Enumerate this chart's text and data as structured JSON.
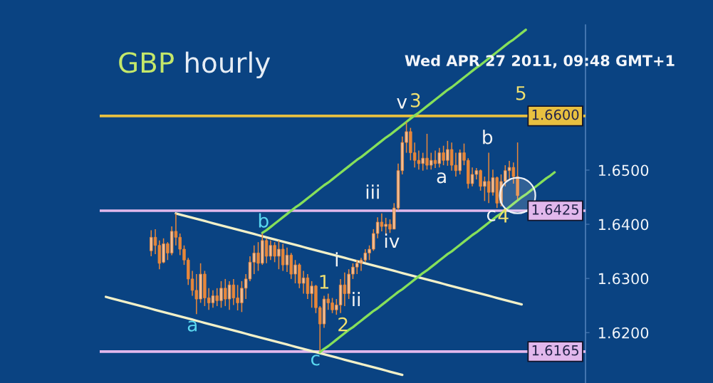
{
  "chart_data": {
    "type": "candlestick",
    "title": "GBP hourly",
    "subtitle": "Wed APR 27 2011, 09:48 GMT+1",
    "color": "#e8873a",
    "categories": [
      null,
      null,
      null,
      null,
      null,
      null,
      null,
      null,
      null,
      null,
      null,
      null,
      null,
      null,
      null,
      null,
      null,
      null,
      null,
      null,
      null,
      null,
      null,
      null,
      null,
      null,
      null,
      null,
      null,
      null,
      null,
      null,
      null,
      null,
      null,
      null,
      null,
      null,
      null,
      null,
      null,
      null,
      null,
      null,
      null,
      null,
      null,
      null,
      null,
      null,
      null,
      null,
      null,
      null,
      null,
      null,
      null,
      null,
      null,
      null,
      null,
      null,
      null,
      null,
      null,
      null,
      null,
      null,
      null,
      null,
      null,
      null,
      null,
      null,
      null,
      null,
      null,
      null,
      null,
      null,
      null,
      null,
      null,
      null,
      null,
      null,
      null,
      null,
      null,
      null,
      null,
      null,
      null,
      null,
      null,
      null,
      null,
      null,
      null,
      null,
      null,
      null,
      null,
      null,
      null,
      null,
      null,
      null,
      null,
      null,
      null,
      null,
      null,
      null,
      null,
      null,
      null,
      null
    ],
    "ohlc": [
      null,
      null,
      null,
      null,
      null,
      null,
      null,
      null,
      null,
      null,
      null,
      null,
      [
        1.6351,
        1.6389,
        1.6341,
        1.6376
      ],
      [
        1.6376,
        1.6391,
        1.6345,
        1.6361
      ],
      [
        1.6361,
        1.637,
        1.6317,
        1.6328
      ],
      [
        1.633,
        1.6374,
        1.6328,
        1.6364
      ],
      [
        1.6364,
        1.6367,
        1.6334,
        1.6347
      ],
      [
        1.6347,
        1.6396,
        1.6343,
        1.6387
      ],
      [
        1.6387,
        1.642,
        1.6361,
        1.6376
      ],
      [
        1.6376,
        1.6383,
        1.6343,
        1.6354
      ],
      [
        1.6354,
        1.6361,
        1.6325,
        1.6334
      ],
      [
        1.6334,
        1.6338,
        1.6288,
        1.6299
      ],
      [
        1.6299,
        1.6314,
        1.6268,
        1.6278
      ],
      [
        1.6278,
        1.6308,
        1.6234,
        1.6262
      ],
      [
        1.6262,
        1.6328,
        1.6255,
        1.6308
      ],
      [
        1.6308,
        1.6314,
        1.6249,
        1.6264
      ],
      [
        1.6264,
        1.6282,
        1.6242,
        1.6255
      ],
      [
        1.6255,
        1.6278,
        1.6246,
        1.6268
      ],
      [
        1.6268,
        1.6282,
        1.6249,
        1.6259
      ],
      [
        1.6259,
        1.6295,
        1.6246,
        1.6282
      ],
      [
        1.6282,
        1.6299,
        1.6249,
        1.6262
      ],
      [
        1.6262,
        1.6295,
        1.6242,
        1.6288
      ],
      [
        1.6288,
        1.6299,
        1.6251,
        1.6264
      ],
      [
        1.6264,
        1.6288,
        1.6241,
        1.6255
      ],
      [
        1.6255,
        1.6295,
        1.6238,
        1.6282
      ],
      [
        1.6282,
        1.6308,
        1.6262,
        1.6299
      ],
      [
        1.6299,
        1.6341,
        1.6295,
        1.633
      ],
      [
        1.633,
        1.6361,
        1.6308,
        1.6347
      ],
      [
        1.6347,
        1.6367,
        1.6314,
        1.6328
      ],
      [
        1.6328,
        1.6383,
        1.6325,
        1.637
      ],
      [
        1.637,
        1.6374,
        1.6328,
        1.6341
      ],
      [
        1.6341,
        1.637,
        1.6334,
        1.6361
      ],
      [
        1.6361,
        1.6367,
        1.633,
        1.6341
      ],
      [
        1.6341,
        1.637,
        1.6317,
        1.6354
      ],
      [
        1.6354,
        1.6364,
        1.6314,
        1.6325
      ],
      [
        1.6325,
        1.6357,
        1.6312,
        1.6343
      ],
      [
        1.6343,
        1.6347,
        1.6299,
        1.6308
      ],
      [
        1.6308,
        1.6334,
        1.6291,
        1.6325
      ],
      [
        1.6325,
        1.6328,
        1.6282,
        1.6291
      ],
      [
        1.6291,
        1.6314,
        1.6272,
        1.6301
      ],
      [
        1.6301,
        1.6308,
        1.6262,
        1.6272
      ],
      [
        1.6272,
        1.6295,
        1.6246,
        1.6286
      ],
      [
        1.6286,
        1.6288,
        1.6236,
        1.6246
      ],
      [
        1.6246,
        1.6249,
        1.6166,
        1.6216
      ],
      [
        1.6216,
        1.6268,
        1.6209,
        1.6262
      ],
      [
        1.6262,
        1.6272,
        1.6242,
        1.6255
      ],
      [
        1.6255,
        1.6264,
        1.6236,
        1.6242
      ],
      [
        1.6242,
        1.6262,
        1.6233,
        1.6251
      ],
      [
        1.6251,
        1.6299,
        1.6236,
        1.6288
      ],
      [
        1.6288,
        1.6311,
        1.6249,
        1.6272
      ],
      [
        1.6272,
        1.6317,
        1.6262,
        1.6308
      ],
      [
        1.6308,
        1.6328,
        1.6299,
        1.6321
      ],
      [
        1.6321,
        1.6334,
        1.6308,
        1.6328
      ],
      [
        1.6328,
        1.6338,
        1.6314,
        1.6334
      ],
      [
        1.6334,
        1.6354,
        1.633,
        1.6347
      ],
      [
        1.6347,
        1.6361,
        1.6334,
        1.6354
      ],
      [
        1.6354,
        1.6391,
        1.6351,
        1.6383
      ],
      [
        1.6383,
        1.6413,
        1.6374,
        1.6404
      ],
      [
        1.6404,
        1.642,
        1.6387,
        1.6396
      ],
      [
        1.6396,
        1.6412,
        1.6383,
        1.64
      ],
      [
        1.64,
        1.6409,
        1.6384,
        1.6391
      ],
      [
        1.6391,
        1.6439,
        1.6391,
        1.643
      ],
      [
        1.643,
        1.6512,
        1.6426,
        1.6499
      ],
      [
        1.6499,
        1.6562,
        1.6492,
        1.6551
      ],
      [
        1.6551,
        1.6589,
        1.6532,
        1.6571
      ],
      [
        1.6571,
        1.6578,
        1.6518,
        1.6532
      ],
      [
        1.6532,
        1.6551,
        1.6505,
        1.6518
      ],
      [
        1.6518,
        1.6536,
        1.6501,
        1.6512
      ],
      [
        1.6512,
        1.6532,
        1.6499,
        1.6522
      ],
      [
        1.6522,
        1.6567,
        1.6501,
        1.6509
      ],
      [
        1.6509,
        1.6532,
        1.6501,
        1.6518
      ],
      [
        1.6518,
        1.6536,
        1.6504,
        1.6512
      ],
      [
        1.6512,
        1.6541,
        1.6505,
        1.6532
      ],
      [
        1.6532,
        1.6545,
        1.6509,
        1.6518
      ],
      [
        1.6518,
        1.6554,
        1.6508,
        1.6538
      ],
      [
        1.6538,
        1.6551,
        1.6499,
        1.6509
      ],
      [
        1.6509,
        1.6532,
        1.6488,
        1.6499
      ],
      [
        1.6499,
        1.6538,
        1.6492,
        1.6532
      ],
      [
        1.6532,
        1.6549,
        1.6509,
        1.6518
      ],
      [
        1.6518,
        1.6522,
        1.6466,
        1.6475
      ],
      [
        1.6475,
        1.6505,
        1.647,
        1.6492
      ],
      [
        1.6492,
        1.6504,
        1.6483,
        1.6499
      ],
      [
        1.6499,
        1.6501,
        1.6462,
        1.647
      ],
      [
        1.647,
        1.6488,
        1.6443,
        1.6479
      ],
      [
        1.6479,
        1.6532,
        1.6439,
        1.6459
      ],
      [
        1.6459,
        1.6501,
        1.6453,
        1.6486
      ],
      [
        1.6486,
        1.6488,
        1.643,
        1.6439
      ],
      [
        1.6439,
        1.6492,
        1.6433,
        1.6479
      ],
      [
        1.6479,
        1.6509,
        1.647,
        1.6499
      ],
      [
        1.6499,
        1.6517,
        1.6483,
        1.6505
      ],
      [
        1.6505,
        1.6514,
        1.6475,
        1.6488
      ],
      [
        1.6488,
        1.6551,
        1.6446,
        1.6453
      ],
      null,
      null,
      null,
      null,
      null,
      null,
      null,
      null,
      null,
      null,
      null,
      null,
      null,
      null,
      null,
      null
    ],
    "series": [
      {
        "type": "line",
        "color": "#f2f0c8",
        "values": [
          null,
          1.6266,
          1.6264,
          1.6262,
          1.626,
          1.6258,
          1.6256,
          1.6254,
          1.6252,
          1.625,
          1.6248,
          1.6246,
          1.6244,
          1.6242,
          1.624,
          1.6238,
          1.6236,
          1.6234,
          1.6232,
          1.623,
          1.6228,
          1.6226,
          1.6224,
          1.6222,
          1.622,
          1.6218,
          1.6216,
          1.6214,
          1.6212,
          1.621,
          1.6208,
          1.6206,
          1.6204,
          1.6202,
          1.62,
          1.6198,
          1.6196,
          1.6194,
          1.6192,
          1.619,
          1.6188,
          1.6186,
          1.6184,
          1.6182,
          1.618,
          1.6178,
          1.6176,
          1.6174,
          1.6172,
          1.617,
          1.6168,
          1.6166,
          1.6164,
          1.6162,
          1.616,
          1.6158,
          1.6156,
          1.6154,
          1.6152,
          1.615,
          1.6148,
          1.6146,
          1.6144,
          1.6142,
          1.614,
          1.6138,
          1.6136,
          1.6134,
          1.6132,
          1.613,
          1.6128,
          1.6126,
          1.6124,
          1.6122,
          null,
          null,
          null,
          null,
          null,
          null,
          null,
          null,
          null,
          null,
          null,
          null,
          null,
          null,
          null,
          null,
          null,
          null,
          null,
          null,
          null,
          null,
          null,
          null,
          null,
          null,
          null,
          null,
          null,
          null,
          null,
          null,
          null,
          null,
          null,
          null,
          null,
          null,
          null,
          null,
          null,
          null,
          null,
          null
        ]
      },
      {
        "type": "line",
        "color": "#f2f0c8",
        "values": [
          null,
          null,
          null,
          null,
          null,
          null,
          null,
          null,
          null,
          null,
          null,
          null,
          null,
          null,
          null,
          null,
          null,
          null,
          1.642,
          1.6418,
          1.6416,
          1.6414,
          1.6412,
          1.641,
          1.6408,
          1.6406,
          1.6404,
          1.6402,
          1.64,
          1.6398,
          1.6396,
          1.6394,
          1.6392,
          1.639,
          1.6388,
          1.6386,
          1.6384,
          1.6382,
          1.638,
          1.6378,
          1.6376,
          1.6374,
          1.6372,
          1.637,
          1.6368,
          1.6366,
          1.6364,
          1.6362,
          1.636,
          1.6358,
          1.6356,
          1.6354,
          1.6352,
          1.635,
          1.6348,
          1.6346,
          1.6344,
          1.6342,
          1.634,
          1.6338,
          1.6336,
          1.6334,
          1.6332,
          1.633,
          1.6328,
          1.6326,
          1.6324,
          1.6322,
          1.632,
          1.6318,
          1.6316,
          1.6314,
          1.6312,
          1.631,
          1.6308,
          1.6306,
          1.6304,
          1.6302,
          1.63,
          1.6298,
          1.6296,
          1.6294,
          1.6292,
          1.629,
          1.6288,
          1.6286,
          1.6284,
          1.6282,
          1.628,
          1.6278,
          1.6276,
          1.6274,
          1.6272,
          1.627,
          1.6268,
          1.6266,
          1.6264,
          1.6262,
          1.626,
          1.6258,
          1.6256,
          1.6254,
          1.6252,
          null,
          null,
          null,
          null,
          null,
          null,
          null,
          null,
          null,
          null,
          null,
          null,
          null,
          null,
          null
        ]
      },
      {
        "type": "line",
        "color": "#86e05a",
        "values": [
          null,
          null,
          null,
          null,
          null,
          null,
          null,
          null,
          null,
          null,
          null,
          null,
          null,
          null,
          null,
          null,
          null,
          null,
          null,
          null,
          null,
          null,
          null,
          null,
          null,
          null,
          null,
          null,
          null,
          null,
          null,
          null,
          null,
          null,
          null,
          null,
          null,
          null,
          null,
          1.6384,
          1.6389,
          1.6395,
          1.6401,
          1.6407,
          1.6413,
          1.6419,
          1.6425,
          1.6431,
          1.6436,
          1.6442,
          1.6448,
          1.6454,
          1.646,
          1.6466,
          1.6472,
          1.6477,
          1.6483,
          1.6489,
          1.6495,
          1.6501,
          1.6507,
          1.6513,
          1.6519,
          1.6524,
          1.653,
          1.6536,
          1.6542,
          1.6548,
          1.6554,
          1.656,
          1.6565,
          1.6571,
          1.6577,
          1.6583,
          1.6589,
          1.6595,
          1.6601,
          1.6606,
          1.6612,
          1.6618,
          1.6624,
          1.663,
          1.6636,
          1.6642,
          1.6648,
          1.6653,
          1.6659,
          1.6665,
          1.6671,
          1.6677,
          1.6683,
          1.6689,
          1.6694,
          1.67,
          1.6706,
          1.6712,
          1.6718,
          1.6724,
          1.673,
          1.6736,
          1.6741,
          1.6747,
          1.6753,
          1.6759,
          null,
          null,
          null,
          null,
          null,
          null,
          null,
          null,
          null,
          null,
          null,
          null,
          null,
          null
        ]
      },
      {
        "type": "line",
        "color": "#86e05a",
        "values": [
          null,
          null,
          null,
          null,
          null,
          null,
          null,
          null,
          null,
          null,
          null,
          null,
          null,
          null,
          null,
          null,
          null,
          null,
          null,
          null,
          null,
          null,
          null,
          null,
          null,
          null,
          null,
          null,
          null,
          null,
          null,
          null,
          null,
          null,
          null,
          null,
          null,
          null,
          null,
          null,
          null,
          null,
          null,
          null,
          null,
          null,
          null,
          null,
          null,
          null,
          null,
          null,
          null,
          1.6164,
          1.617,
          1.6175,
          1.6181,
          1.6187,
          1.6193,
          1.6199,
          1.6205,
          1.621,
          1.6216,
          1.6222,
          1.6228,
          1.6234,
          1.624,
          1.6245,
          1.6251,
          1.6257,
          1.6263,
          1.6269,
          1.6275,
          1.628,
          1.6286,
          1.6292,
          1.6298,
          1.6304,
          1.631,
          1.6315,
          1.6321,
          1.6327,
          1.6333,
          1.6339,
          1.6345,
          1.635,
          1.6356,
          1.6362,
          1.6368,
          1.6374,
          1.638,
          1.6385,
          1.6391,
          1.6397,
          1.6403,
          1.6409,
          1.6415,
          1.642,
          1.6426,
          1.6432,
          1.6438,
          1.6444,
          1.645,
          1.6455,
          1.6461,
          1.6467,
          1.6473,
          1.6479,
          1.6485,
          1.649,
          1.6496,
          null,
          null,
          null,
          null,
          null,
          null,
          null
        ]
      }
    ],
    "ylim": [
      1.6107,
      1.6768
    ],
    "yticks": [
      {
        "value": 1.62,
        "label": "1.6200"
      },
      {
        "value": 1.63,
        "label": "1.6300"
      },
      {
        "value": 1.64,
        "label": "1.6400"
      },
      {
        "value": 1.65,
        "label": "1.6500"
      }
    ],
    "tick_labels": "y",
    "ref_lines": [
      {
        "axis": "y",
        "value": 1.66,
        "label": "1.6600",
        "color": "#e8c040"
      },
      {
        "axis": "y",
        "value": 1.6425,
        "label": "1.6425",
        "color": "#e2b8ec"
      },
      {
        "axis": "y",
        "value": 1.6165,
        "label": "1.6165",
        "color": "#e2b8ec"
      }
    ],
    "annotations": [
      "a",
      "b",
      "c",
      "1",
      "i",
      "2",
      "ii",
      "iii",
      "iv",
      "v",
      "3",
      "a",
      "b",
      "c",
      "4",
      "5"
    ]
  }
}
